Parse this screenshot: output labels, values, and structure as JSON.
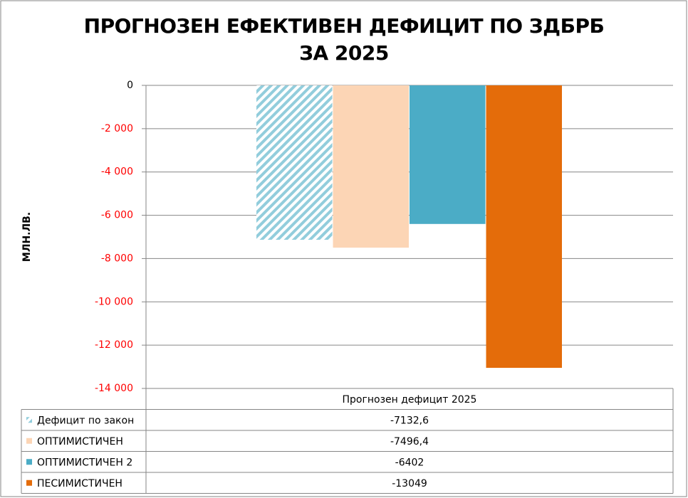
{
  "chart_data": {
    "type": "bar",
    "title": "ПРОГНОЗЕН ЕФЕКТИВЕН ДЕФИЦИТ ПО ЗДБРБ ЗА 2025",
    "y_label": "МЛН.ЛВ.",
    "categories": [
      "Прогнозен дефицит 2025"
    ],
    "series": [
      {
        "name": "Дефицит по закон",
        "color": "#92cddc",
        "pattern": "hatch",
        "values": [
          -7132.6
        ],
        "value_labels": [
          "-7132,6"
        ]
      },
      {
        "name": "ОПТИМИСТИЧЕН",
        "color": "#fcd5b5",
        "values": [
          -7496.4
        ],
        "value_labels": [
          "-7496,4"
        ]
      },
      {
        "name": "ОПТИМИСТИЧЕН 2",
        "color": "#4bacc6",
        "values": [
          -6402
        ]
      },
      {
        "name": "ПЕСИМИСТИЧЕН",
        "color": "#e46c0a",
        "values": [
          -13049
        ]
      }
    ],
    "ylim": [
      -14000,
      0
    ],
    "yticks": [
      0,
      {
        "value": -2000,
        "label": "-2 000"
      },
      {
        "value": -4000,
        "label": "-4 000"
      },
      {
        "value": -6000,
        "label": "-6 000"
      },
      {
        "value": -8000,
        "label": "-8 000"
      },
      {
        "value": -10000,
        "label": "-10 000"
      },
      {
        "value": -12000,
        "label": "-12 000"
      },
      {
        "value": -14000,
        "label": "-14 000"
      }
    ],
    "grid": true
  }
}
